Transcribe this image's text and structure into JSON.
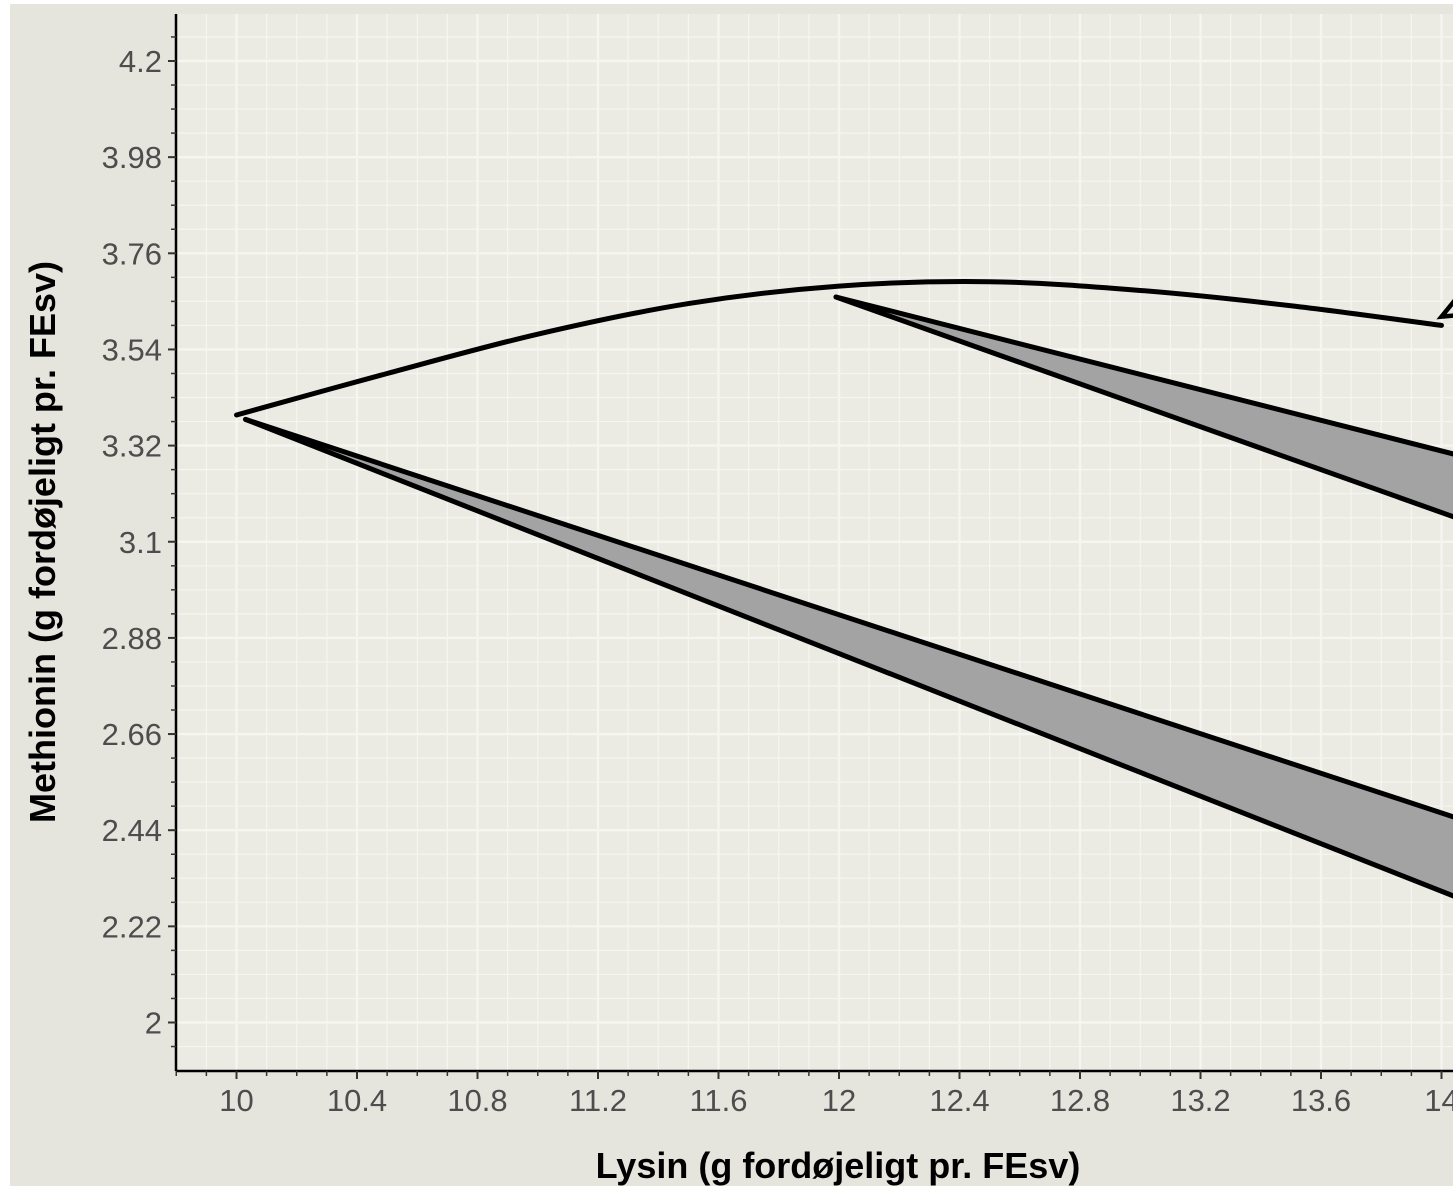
{
  "chart_data": {
    "type": "line",
    "title": "",
    "xlabel": "Lysin (g fordøjeligt pr. FEsv)",
    "ylabel": "Methionin (g fordøjeligt pr. FEsv)",
    "xlim": [
      9.8,
      14.13
    ],
    "ylim": [
      1.9,
      4.3
    ],
    "x_ticks": [
      10,
      10.4,
      10.8,
      11.2,
      11.6,
      12,
      12.4,
      12.8,
      13.2,
      13.6,
      14
    ],
    "x_tick_labels": [
      "10",
      "10.4",
      "10.8",
      "11.2",
      "11.6",
      "12",
      "12.4",
      "12.8",
      "13.2",
      "13.6",
      "14"
    ],
    "y_ticks": [
      2,
      2.22,
      2.44,
      2.66,
      2.88,
      3.1,
      3.32,
      3.54,
      3.76,
      3.98,
      4.2
    ],
    "y_tick_labels": [
      "2",
      "2.22",
      "2.44",
      "2.66",
      "2.88",
      "3.1",
      "3.32",
      "3.54",
      "3.76",
      "3.98",
      "4.2"
    ],
    "grid": true,
    "legend": "none",
    "colors": {
      "panel_background": "#e5e5de",
      "plot_background": "#ebebe4",
      "grid_line": "#f6f6f1",
      "line": "#000000",
      "fill": "#a3a3a3",
      "tick_label": "#4d4d4d"
    },
    "curve": {
      "x": [
        10.0,
        10.5,
        11.0,
        11.5,
        12.0,
        12.5,
        13.0,
        13.5,
        14.0
      ],
      "y": [
        3.39,
        3.485,
        3.575,
        3.645,
        3.685,
        3.695,
        3.675,
        3.64,
        3.595
      ]
    },
    "wedges": [
      {
        "apex": {
          "x": 10.03,
          "y": 3.38
        },
        "upper_edge": {
          "x": [
            10.03,
            14.13
          ],
          "y": [
            3.38,
            2.45
          ]
        },
        "lower_edge": {
          "x": [
            10.03,
            14.13
          ],
          "y": [
            3.38,
            2.265
          ]
        }
      },
      {
        "apex": {
          "x": 11.99,
          "y": 3.66
        },
        "upper_edge": {
          "x": [
            11.99,
            14.13
          ],
          "y": [
            3.66,
            3.285
          ]
        },
        "lower_edge": {
          "x": [
            11.99,
            14.13
          ],
          "y": [
            3.66,
            3.135
          ]
        }
      }
    ],
    "arrow": {
      "tip": {
        "x": 14.0,
        "y": 3.615
      },
      "tail": {
        "x": 14.13,
        "y": 3.725
      }
    }
  }
}
